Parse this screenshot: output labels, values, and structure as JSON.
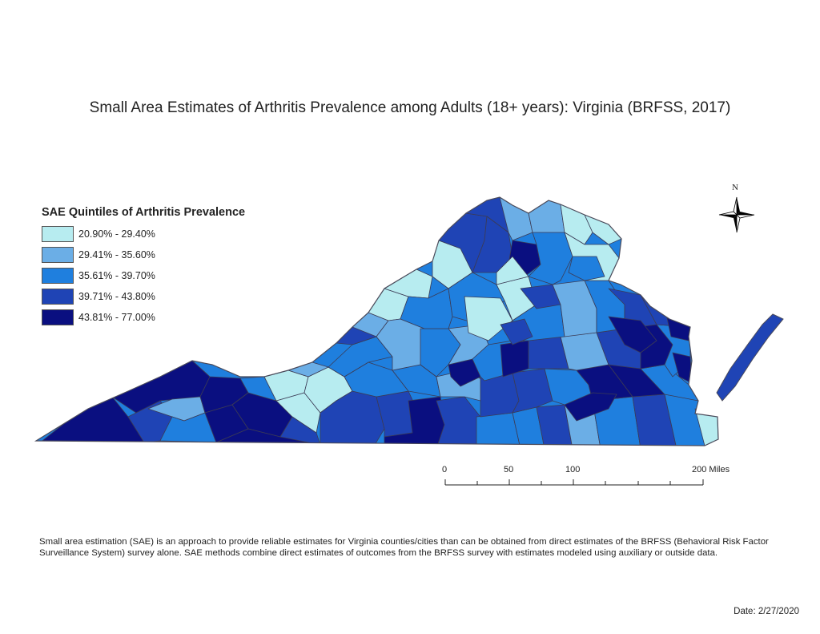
{
  "title": "Small Area Estimates of Arthritis Prevalence among Adults (18+ years): Virginia (BRFSS, 2017)",
  "legend": {
    "title": "SAE Quintiles of Arthritis Prevalence",
    "items": [
      {
        "label": "20.90% - 29.40%",
        "color": "#b7ecf0"
      },
      {
        "label": "29.41% - 35.60%",
        "color": "#6baee6"
      },
      {
        "label": "35.61% - 39.70%",
        "color": "#1f7fde"
      },
      {
        "label": "39.71% - 43.80%",
        "color": "#1f44b5"
      },
      {
        "label": "43.81% - 77.00%",
        "color": "#0a0f80"
      }
    ]
  },
  "north_arrow": {
    "label": "N"
  },
  "scale_bar": {
    "labels": [
      "0",
      "50",
      "100",
      "200 Miles"
    ]
  },
  "note": "Small area estimation (SAE) is an approach to provide reliable estimates for Virginia counties/cities than can be obtained from direct estimates of the BRFSS (Behavioral Risk Factor Surveillance System) survey alone. SAE methods combine direct estimates of outcomes from the BRFSS survey with estimates modeled using auxiliary or outside data.",
  "date": "Date: 2/27/2020"
}
